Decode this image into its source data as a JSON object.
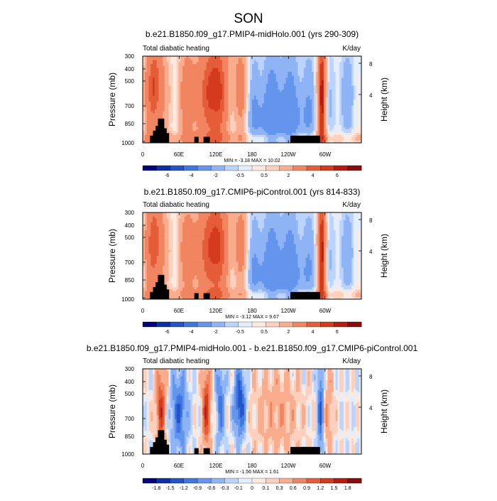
{
  "page_title": "SON",
  "colors": {
    "neg": [
      "#000080",
      "#0b2fa8",
      "#2255cc",
      "#3f77e0",
      "#6495ed",
      "#8eb4f5",
      "#bcd3fb",
      "#e3edfd"
    ],
    "pos": [
      "#fde9de",
      "#fcd0bc",
      "#f9ad8d",
      "#f18560",
      "#e45d38",
      "#d43a1c",
      "#b81c0f",
      "#8b0a0a"
    ],
    "topo": "#000000"
  },
  "chart_data": [
    {
      "type": "heatmap",
      "title": "b.e21.B1850.f09_g17.PMIP4-midHolo.001 (yrs 290-309)",
      "subtitle_left": "Total diabatic heating",
      "subtitle_right": "K/day",
      "ylabel": "Pressure (mb)",
      "ylabel_right": "Height (km)",
      "yticks": [
        "300",
        "400",
        "500",
        "700",
        "850",
        "1000"
      ],
      "yticks_right": [
        "8",
        "4"
      ],
      "xticks": [
        "0",
        "60E",
        "120E",
        "180",
        "120W",
        "60W"
      ],
      "stats": "MIN = -3.18  MAX = 10.02",
      "colorbar_labels": [
        "-6",
        "-4",
        "-2",
        "-0.5",
        "0.5",
        "2",
        "4",
        "6"
      ],
      "contour_levels": [
        -7,
        -6,
        -5,
        -4,
        -3,
        -2,
        -1,
        -0.5,
        0,
        0.5,
        1,
        2,
        3,
        4,
        5,
        6,
        7
      ],
      "scale": 1.0
    },
    {
      "type": "heatmap",
      "title": "b.e21.B1850.f09_g17.CMIP6-piControl.001 (yrs 814-833)",
      "subtitle_left": "Total diabatic heating",
      "subtitle_right": "K/day",
      "ylabel": "Pressure (mb)",
      "ylabel_right": "Height (km)",
      "yticks": [
        "300",
        "400",
        "500",
        "700",
        "850",
        "1000"
      ],
      "yticks_right": [
        "8",
        "4"
      ],
      "xticks": [
        "0",
        "60E",
        "120E",
        "180",
        "120W",
        "60W"
      ],
      "stats": "MIN = -3.12  MAX = 9.67",
      "colorbar_labels": [
        "-6",
        "-4",
        "-2",
        "-0.5",
        "0.5",
        "2",
        "4",
        "6"
      ],
      "contour_levels": [
        -7,
        -6,
        -5,
        -4,
        -3,
        -2,
        -1,
        -0.5,
        0,
        0.5,
        1,
        2,
        3,
        4,
        5,
        6,
        7
      ],
      "scale": 0.97
    },
    {
      "type": "heatmap",
      "title": "b.e21.B1850.f09_g17.PMIP4-midHolo.001 - b.e21.B1850.f09_g17.CMIP6-piControl.001",
      "subtitle_left": "Total diabatic heating",
      "subtitle_right": "K/day",
      "ylabel": "Pressure (mb)",
      "ylabel_right": "Height (km)",
      "yticks": [
        "300",
        "400",
        "500",
        "700",
        "850",
        "1000"
      ],
      "yticks_right": [
        "8",
        "4"
      ],
      "xticks": [
        "0",
        "60E",
        "120E",
        "180",
        "120W",
        "60W"
      ],
      "stats": "MIN = -1.56  MAX = 1.61",
      "colorbar_labels": [
        "-1.8",
        "-1.5",
        "-1.2",
        "-0.9",
        "-0.6",
        "-0.3",
        "-0.1",
        "0",
        "0.1",
        "0.3",
        "0.6",
        "0.9",
        "1.2",
        "1.5",
        "1.8"
      ],
      "contour_levels": [
        -1.8,
        -1.5,
        -1.2,
        -0.9,
        -0.6,
        -0.3,
        -0.1,
        0,
        0.1,
        0.3,
        0.6,
        0.9,
        1.2,
        1.5,
        1.8
      ],
      "scale": 1.0
    }
  ]
}
